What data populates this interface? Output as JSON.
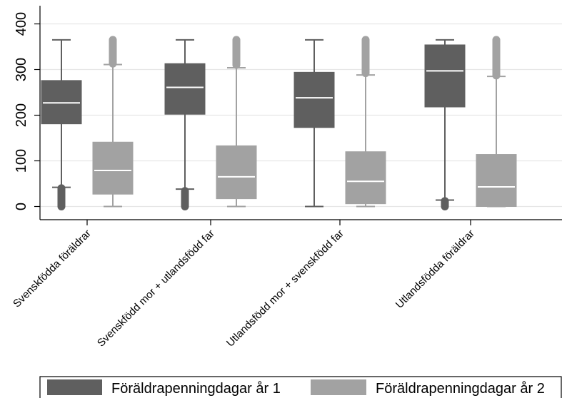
{
  "chart_data": {
    "type": "boxplot",
    "ylim": [
      -20,
      425
    ],
    "yticks": [
      0,
      100,
      200,
      300,
      400
    ],
    "ytick_labels": [
      "0",
      "100",
      "200",
      "300",
      "400"
    ],
    "grid": true,
    "legend_position": "bottom",
    "colors": {
      "dark": "#5f5f5f",
      "light": "#a2a2a2",
      "median": "#ffffff",
      "grid": "#e6e6e6"
    },
    "categories": [
      "Svenskfödda föräldrar",
      "Svenskfödd mor + utlandsfödd far",
      "Utlandsfödd mor + svenskfödd far",
      "Utlandsfödda föräldrar"
    ],
    "series": [
      {
        "name": "Föräldrapenningdagar år 1",
        "color": "#5f5f5f",
        "boxes": [
          {
            "lower_whisker": 42,
            "q1": 181,
            "median": 227,
            "q3": 276,
            "upper_whisker": 365,
            "outliers_low": [
              0,
              40
            ]
          },
          {
            "lower_whisker": 38,
            "q1": 202,
            "median": 261,
            "q3": 313,
            "upper_whisker": 365,
            "outliers_low": [
              0,
              34
            ]
          },
          {
            "lower_whisker": 0,
            "q1": 173,
            "median": 238,
            "q3": 294,
            "upper_whisker": 365,
            "outliers_low": []
          },
          {
            "lower_whisker": 14,
            "q1": 218,
            "median": 297,
            "q3": 354,
            "upper_whisker": 365,
            "outliers_low": [
              0,
              12
            ]
          }
        ]
      },
      {
        "name": "Föräldrapenningdagar år 2",
        "color": "#a2a2a2",
        "boxes": [
          {
            "lower_whisker": 0,
            "q1": 27,
            "median": 79,
            "q3": 141,
            "upper_whisker": 311,
            "outliers_high": [
              313,
              365
            ]
          },
          {
            "lower_whisker": 0,
            "q1": 17,
            "median": 65,
            "q3": 133,
            "upper_whisker": 304,
            "outliers_high": [
              310,
              365
            ]
          },
          {
            "lower_whisker": 0,
            "q1": 6,
            "median": 55,
            "q3": 120,
            "upper_whisker": 288,
            "outliers_high": [
              292,
              365
            ]
          },
          {
            "lower_whisker": 0,
            "q1": 0,
            "median": 43,
            "q3": 114,
            "upper_whisker": 285,
            "outliers_high": [
              287,
              365
            ]
          }
        ]
      }
    ]
  }
}
